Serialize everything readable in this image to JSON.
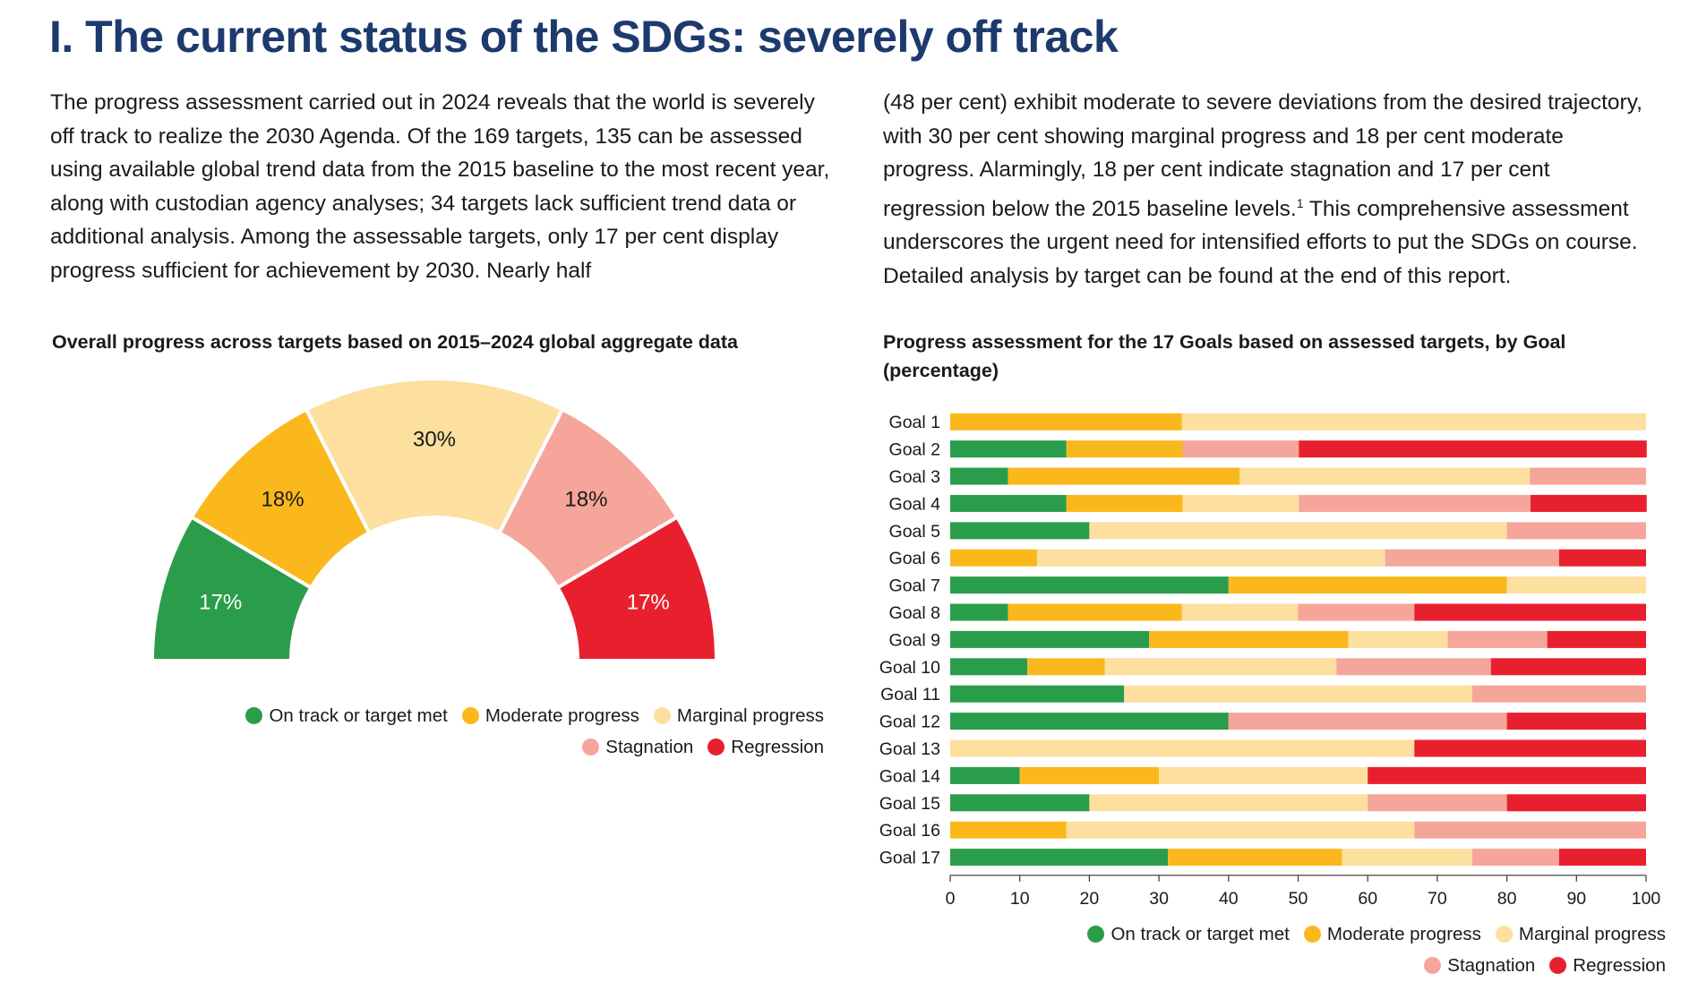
{
  "page": {
    "title": "I. The current status of the SDGs: severely off track",
    "paragraph_left": "The progress assessment carried out in 2024 reveals that the world is severely off track to realize the 2030 Agenda. Of the 169 targets, 135 can be assessed using available global trend data from the 2015 baseline to the most recent year, along with custodian agency analyses; 34 targets lack sufficient trend data or additional analysis. Among the assessable targets, only 17 per cent display progress sufficient for achievement by 2030. Nearly half",
    "paragraph_right_before_note": "(48 per cent) exhibit moderate to severe deviations from the desired trajectory, with 30 per cent showing marginal progress and 18 per cent moderate progress. Alarmingly, 18 per cent indicate stagnation and 17 per cent regression below the 2015 baseline levels.",
    "footnote_mark": "1",
    "paragraph_right_after_note": " This comprehensive assessment underscores the urgent need for intensified efforts to put the SDGs on course. Detailed analysis by target can be found at the end of this report."
  },
  "legend": {
    "on_track": "On track or target met",
    "moderate": "Moderate progress",
    "marginal": "Marginal progress",
    "stagnation": "Stagnation",
    "regression": "Regression"
  },
  "colors": {
    "on_track": "#2a9d4b",
    "moderate": "#fbb81d",
    "marginal": "#fddf9f",
    "stagnation": "#f6a59a",
    "regression": "#e8202e"
  },
  "chart_data": [
    {
      "type": "pie",
      "subtype": "semicircle-donut",
      "title": "Overall progress across targets based on 2015–2024 global aggregate data",
      "categories": [
        "On track or target met",
        "Moderate progress",
        "Marginal progress",
        "Stagnation",
        "Regression"
      ],
      "values": [
        17,
        18,
        30,
        18,
        17
      ],
      "labels": [
        "17%",
        "18%",
        "30%",
        "18%",
        "17%"
      ],
      "legend_position": "bottom-right"
    },
    {
      "type": "bar",
      "orientation": "horizontal",
      "stacked": true,
      "title": "Progress assessment for the 17 Goals based on assessed targets, by Goal (percentage)",
      "categories": [
        "Goal 1",
        "Goal 2",
        "Goal 3",
        "Goal 4",
        "Goal 5",
        "Goal 6",
        "Goal 7",
        "Goal 8",
        "Goal 9",
        "Goal 10",
        "Goal 11",
        "Goal 12",
        "Goal 13",
        "Goal 14",
        "Goal 15",
        "Goal 16",
        "Goal 17"
      ],
      "series": [
        {
          "name": "On track or target met",
          "values": [
            0,
            16.7,
            8.3,
            16.7,
            20,
            0,
            40,
            8.3,
            28.6,
            11.1,
            25,
            40,
            0,
            10,
            20,
            0,
            31.3
          ]
        },
        {
          "name": "Moderate progress",
          "values": [
            33.3,
            16.7,
            33.3,
            16.7,
            0,
            12.5,
            40,
            25,
            28.6,
            11.1,
            0,
            0,
            0,
            20,
            0,
            16.7,
            25
          ]
        },
        {
          "name": "Marginal progress",
          "values": [
            66.7,
            0,
            41.7,
            16.7,
            60,
            50,
            20,
            16.7,
            14.3,
            33.3,
            50,
            0,
            66.7,
            30,
            40,
            50,
            18.7
          ]
        },
        {
          "name": "Stagnation",
          "values": [
            0,
            16.7,
            16.7,
            33.3,
            20,
            25,
            0,
            16.7,
            14.3,
            22.2,
            25,
            40,
            0,
            0,
            20,
            33.3,
            12.5
          ]
        },
        {
          "name": "Regression",
          "values": [
            0,
            50,
            0,
            16.7,
            0,
            12.5,
            0,
            33.3,
            14.2,
            22.3,
            0,
            20,
            33.3,
            40,
            20,
            0,
            12.5
          ]
        }
      ],
      "xlim": [
        0,
        100
      ],
      "xticks": [
        0,
        10,
        20,
        30,
        40,
        50,
        60,
        70,
        80,
        90,
        100
      ],
      "legend_position": "bottom-right"
    }
  ]
}
